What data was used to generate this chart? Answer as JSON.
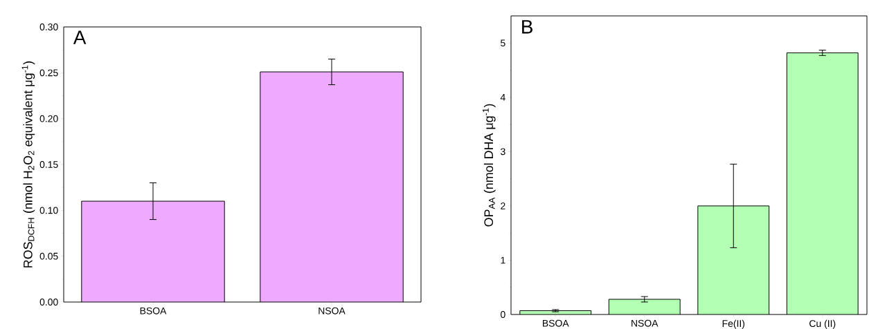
{
  "chart_data": [
    {
      "type": "bar",
      "title": "A",
      "ylabel": "ROS$_{DCFH}$ (nmol H$_{2}$O$_{2}$ equivalent μg$^{-1}$)",
      "categories": [
        "BSOA",
        "NSOA"
      ],
      "values": [
        0.11,
        0.251
      ],
      "errors": [
        0.02,
        0.014
      ],
      "color": "#eeaafe",
      "ylim": [
        0,
        0.3
      ],
      "yticks": [
        {
          "value": 0,
          "label": "0.00"
        },
        {
          "value": 0.05,
          "label": "0.05"
        },
        {
          "value": 0.1,
          "label": "0.10"
        },
        {
          "value": 0.15,
          "label": "0.15"
        },
        {
          "value": 0.2,
          "label": "0.20"
        },
        {
          "value": 0.25,
          "label": "0.25"
        },
        {
          "value": 0.3,
          "label": "0.30"
        }
      ]
    },
    {
      "type": "bar",
      "title": "B",
      "ylabel": "OP$_{AA}$ (nmol DHA μg$^{-1}$)",
      "categories": [
        "BSOA",
        "NSOA",
        "Fe(II)",
        "Cu (II)"
      ],
      "values": [
        0.07,
        0.28,
        2.0,
        4.82
      ],
      "errors": [
        0.02,
        0.05,
        [
          1.23,
          2.77
        ],
        0.05
      ],
      "color": "#b3ffb3",
      "ylim": [
        0,
        5.5
      ],
      "yticks": [
        0,
        1,
        2,
        3,
        4,
        5
      ]
    }
  ]
}
